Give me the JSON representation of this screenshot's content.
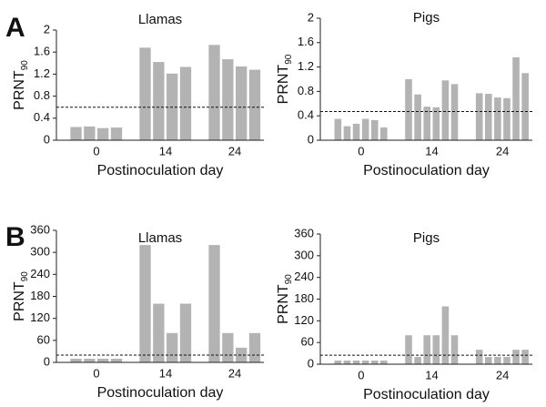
{
  "panel_labels": [
    "A",
    "B"
  ],
  "chart_data": [
    {
      "type": "bar",
      "title": "Llamas",
      "ylabel": "PRNT",
      "ylabel_subscript": "90",
      "xlabel": "Postinoculation day",
      "color": "#b3b3b3",
      "ylim": [
        0,
        2
      ],
      "yticks": [
        0,
        0.4,
        0.8,
        1.2,
        1.6,
        2
      ],
      "threshold": 0.6,
      "groups": [
        {
          "label": "0",
          "values": [
            0.24,
            0.25,
            0.22,
            0.23
          ]
        },
        {
          "label": "14",
          "values": [
            1.68,
            1.42,
            1.21,
            1.33
          ]
        },
        {
          "label": "24",
          "values": [
            1.73,
            1.47,
            1.34,
            1.28
          ]
        }
      ]
    },
    {
      "type": "bar",
      "title": "Pigs",
      "ylabel": "PRNT",
      "ylabel_subscript": "90",
      "xlabel": "Postinoculation day",
      "color": "#b3b3b3",
      "ylim": [
        0,
        2
      ],
      "yticks": [
        0,
        0.4,
        0.8,
        1.2,
        1.6,
        2
      ],
      "threshold": 0.47,
      "groups": [
        {
          "label": "0",
          "values": [
            0.35,
            0.23,
            0.27,
            0.35,
            0.33,
            0.21
          ]
        },
        {
          "label": "14",
          "values": [
            1.0,
            0.75,
            0.55,
            0.54,
            0.98,
            0.92
          ]
        },
        {
          "label": "24",
          "values": [
            0.77,
            0.76,
            0.7,
            0.69,
            1.36,
            1.1
          ]
        }
      ]
    },
    {
      "type": "bar",
      "title": "Llamas",
      "ylabel": "PRNT",
      "ylabel_subscript": "90",
      "xlabel": "Postinoculation day",
      "color": "#b3b3b3",
      "ylim": [
        0,
        360
      ],
      "yticks": [
        0,
        60,
        120,
        180,
        240,
        300,
        360
      ],
      "threshold": 20,
      "groups": [
        {
          "label": "0",
          "values": [
            10,
            10,
            10,
            10
          ]
        },
        {
          "label": "14",
          "values": [
            320,
            160,
            80,
            160
          ]
        },
        {
          "label": "24",
          "values": [
            320,
            80,
            40,
            80
          ]
        }
      ]
    },
    {
      "type": "bar",
      "title": "Pigs",
      "ylabel": "PRNT",
      "ylabel_subscript": "90",
      "xlabel": "Postinoculation day",
      "color": "#b3b3b3",
      "ylim": [
        0,
        360
      ],
      "yticks": [
        0,
        60,
        120,
        180,
        240,
        300,
        360
      ],
      "threshold": 25,
      "groups": [
        {
          "label": "0",
          "values": [
            10,
            10,
            10,
            10,
            10,
            10
          ]
        },
        {
          "label": "14",
          "values": [
            80,
            20,
            80,
            80,
            160,
            80
          ]
        },
        {
          "label": "24",
          "values": [
            40,
            20,
            20,
            20,
            40,
            40
          ]
        }
      ]
    }
  ]
}
